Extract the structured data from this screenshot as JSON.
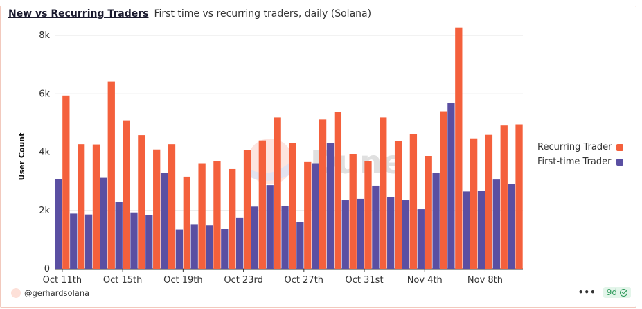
{
  "header": {
    "title": "New vs Recurring Traders",
    "subtitle": "First time vs recurring traders, daily (Solana)"
  },
  "footer": {
    "author": "@gerhardsolana",
    "more": "•••",
    "age_badge": "9d"
  },
  "watermark": "Dune",
  "colors": {
    "recurring": "#f4603c",
    "first_time": "#5a4fa2"
  },
  "chart_data": {
    "type": "bar",
    "xlabel": "",
    "ylabel": "User Count",
    "ylim": [
      0,
      8500
    ],
    "yticks": [
      0,
      2000,
      4000,
      6000,
      8000
    ],
    "ytick_labels": [
      "0",
      "2k",
      "4k",
      "6k",
      "8k"
    ],
    "xtick_labels": [
      "Oct 11th",
      "Oct 15th",
      "Oct 19th",
      "Oct 23rd",
      "Oct 27th",
      "Oct 31st",
      "Nov 4th",
      "Nov 8th"
    ],
    "xtick_every": 4,
    "grid": true,
    "legend_position": "right",
    "categories": [
      "Oct 11",
      "Oct 12",
      "Oct 13",
      "Oct 14",
      "Oct 15",
      "Oct 16",
      "Oct 17",
      "Oct 18",
      "Oct 19",
      "Oct 20",
      "Oct 21",
      "Oct 22",
      "Oct 23",
      "Oct 24",
      "Oct 25",
      "Oct 26",
      "Oct 27",
      "Oct 28",
      "Oct 29",
      "Oct 30",
      "Oct 31",
      "Nov 1",
      "Nov 2",
      "Nov 3",
      "Nov 4",
      "Nov 5",
      "Nov 6",
      "Nov 7",
      "Nov 8",
      "Nov 9",
      "Nov 10"
    ],
    "series": [
      {
        "name": "Recurring Trader",
        "values": [
          5940,
          4270,
          4260,
          6420,
          5090,
          4580,
          4090,
          4270,
          3160,
          3620,
          3680,
          3420,
          4060,
          4400,
          5190,
          4320,
          3660,
          5120,
          5370,
          3920,
          3690,
          5190,
          4370,
          4620,
          3870,
          5400,
          8270,
          4470,
          4590,
          4910,
          4950
        ]
      },
      {
        "name": "First-time Trader",
        "values": [
          3070,
          1890,
          1860,
          3120,
          2280,
          1930,
          1830,
          3290,
          1340,
          1510,
          1490,
          1370,
          1760,
          2130,
          2870,
          2160,
          1610,
          3620,
          4310,
          2350,
          2400,
          2850,
          2450,
          2350,
          2040,
          3300,
          5680,
          2650,
          2670,
          3060,
          2900
        ]
      }
    ]
  }
}
